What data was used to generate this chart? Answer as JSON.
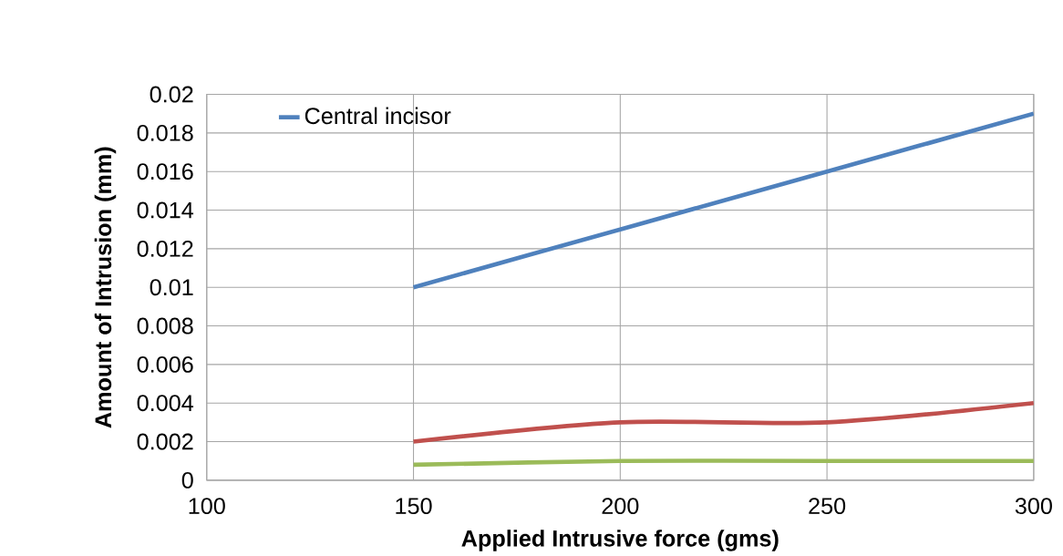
{
  "chart_data": {
    "type": "line",
    "xlabel": "Applied Intrusive force (gms)",
    "ylabel": "Amount of Intrusion (mm)",
    "x": [
      150,
      200,
      250,
      300
    ],
    "series": [
      {
        "name": "Central incisor",
        "color": "#4f81bd",
        "values": [
          0.01,
          0.013,
          0.016,
          0.019
        ]
      },
      {
        "color": "#c0504d",
        "values": [
          0.002,
          0.003,
          0.003,
          0.004
        ]
      },
      {
        "color": "#9bbb59",
        "values": [
          0.0008,
          0.001,
          0.001,
          0.001
        ]
      }
    ],
    "xlim": [
      100,
      300
    ],
    "xticks": [
      100,
      150,
      200,
      250,
      300
    ],
    "ylim": [
      0,
      0.02
    ],
    "yticks": [
      0,
      0.002,
      0.004,
      0.006,
      0.008,
      0.01,
      0.012,
      0.014,
      0.016,
      0.018,
      0.02
    ],
    "grid": true,
    "legend": "top left",
    "marker": "none",
    "line_style": "solid"
  }
}
